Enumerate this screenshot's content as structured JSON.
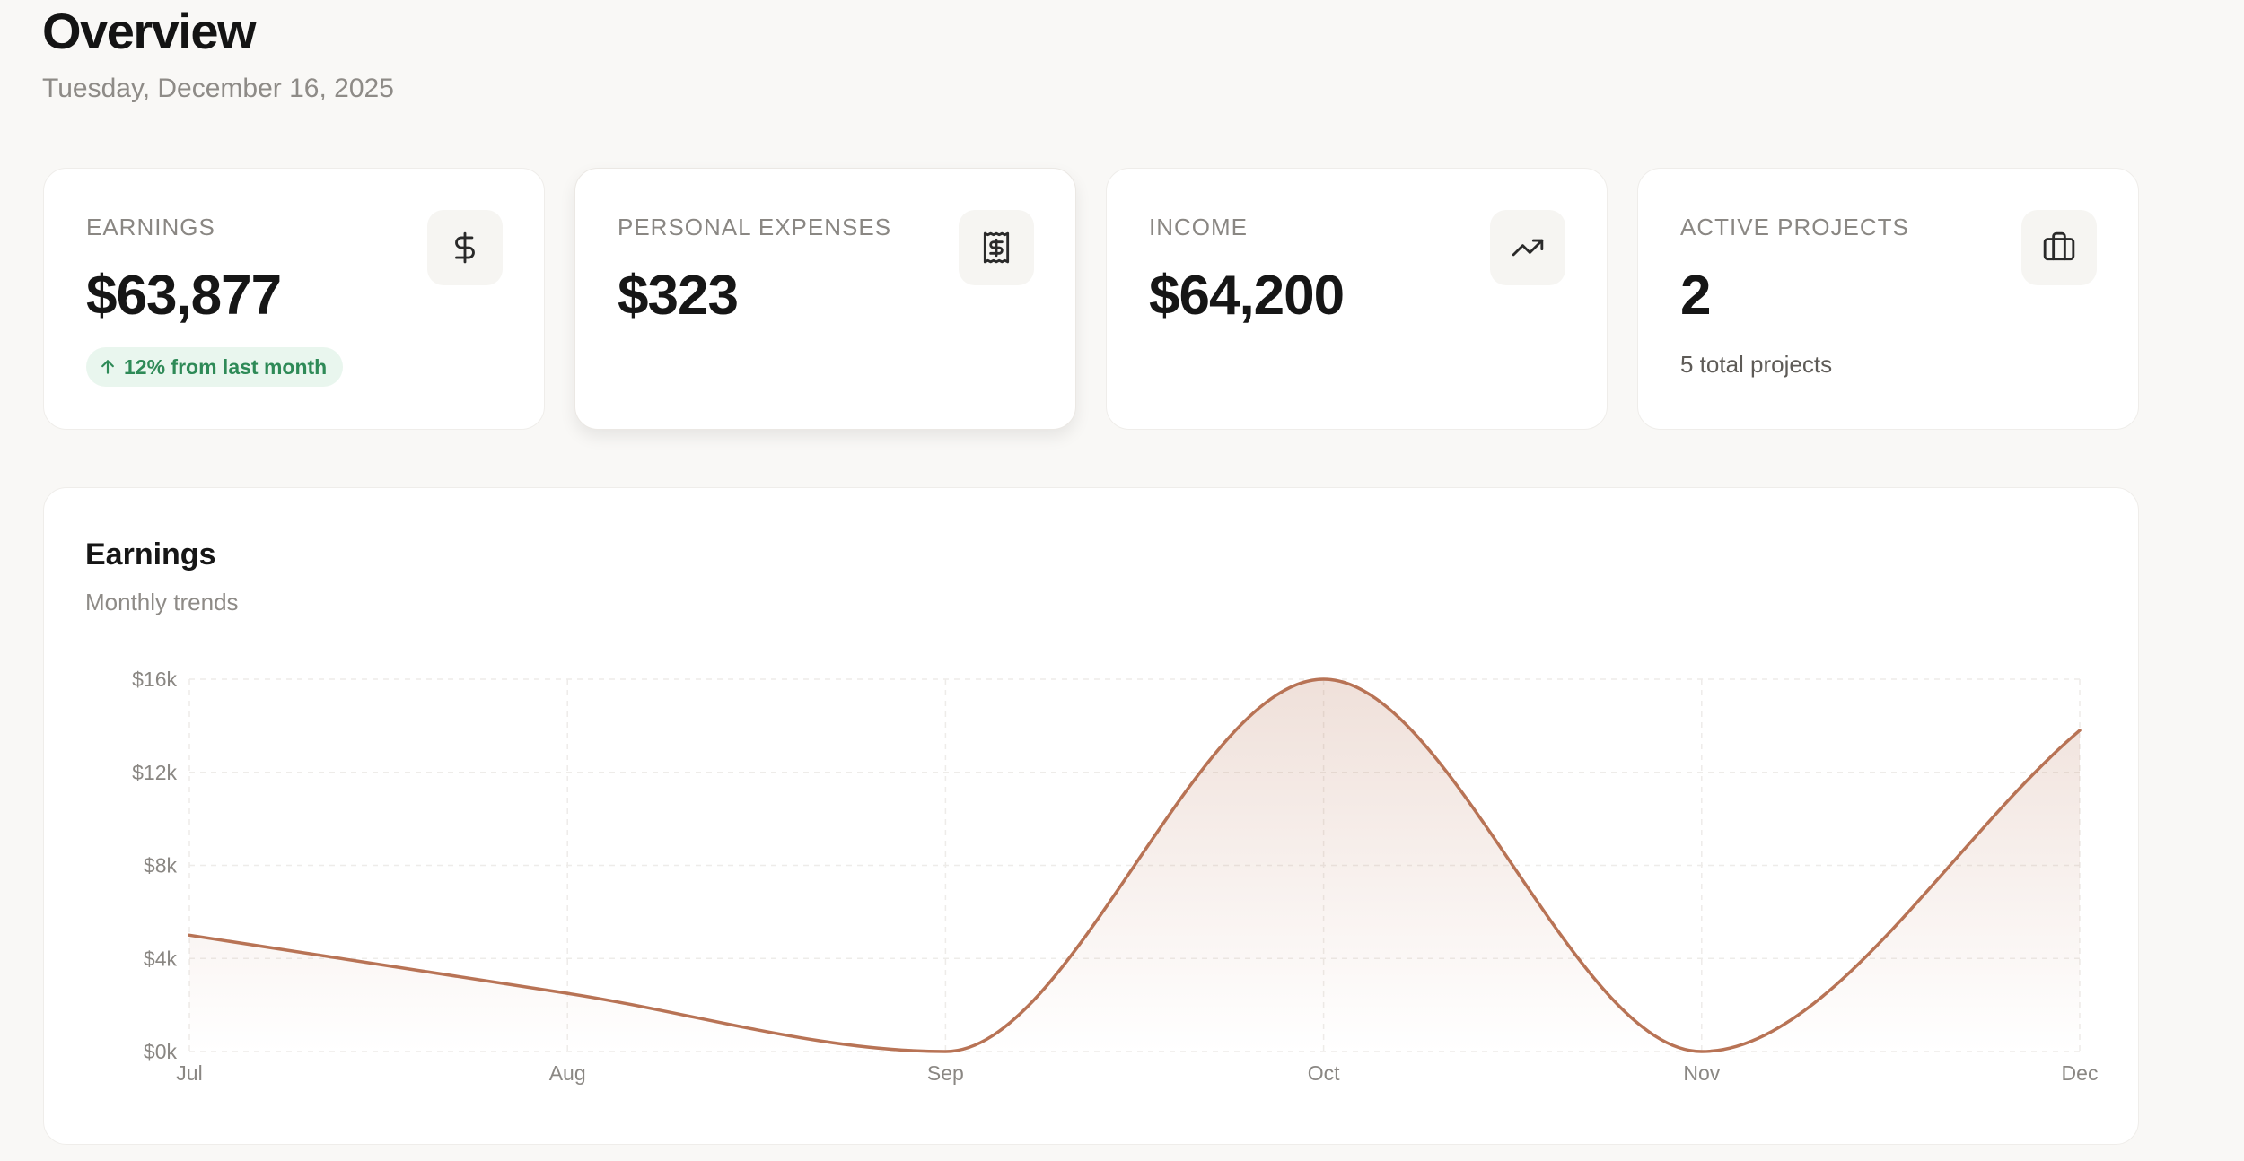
{
  "header": {
    "title": "Overview",
    "date": "Tuesday, December 16, 2025"
  },
  "cards": [
    {
      "label": "EARNINGS",
      "value": "$63,877",
      "icon": "dollar-icon",
      "badge": "12% from last month",
      "badge_icon": "arrow-up-icon"
    },
    {
      "label": "PERSONAL EXPENSES",
      "value": "$323",
      "icon": "receipt-icon"
    },
    {
      "label": "INCOME",
      "value": "$64,200",
      "icon": "trending-up-icon"
    },
    {
      "label": "ACTIVE PROJECTS",
      "value": "2",
      "icon": "briefcase-icon",
      "subtext": "5 total projects"
    }
  ],
  "chart": {
    "title": "Earnings",
    "subtitle": "Monthly trends"
  },
  "chart_data": {
    "type": "area",
    "categories": [
      "Jul",
      "Aug",
      "Sep",
      "Oct",
      "Nov",
      "Dec"
    ],
    "series": [
      {
        "values": [
          5000,
          2500,
          0,
          16000,
          0,
          13800
        ]
      }
    ],
    "y_ticks": [
      "$0k",
      "$4k",
      "$8k",
      "$12k",
      "$16k"
    ],
    "ylim": [
      0,
      16000
    ],
    "grid": true,
    "colors": {
      "line": "#b87355",
      "fill": "#b87355"
    }
  },
  "colors": {
    "background": "#f9f8f6",
    "card": "#ffffff",
    "accent": "#b87355",
    "positive": "#2e8a57"
  }
}
